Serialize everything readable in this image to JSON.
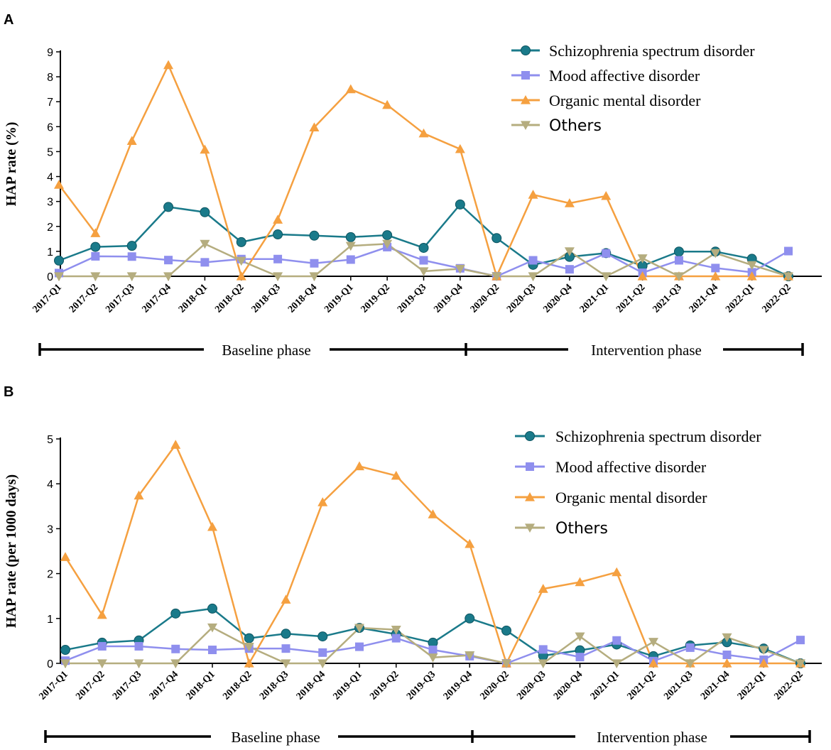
{
  "chart_data": [
    {
      "panel": "A",
      "type": "line",
      "ylabel": "HAP rate (%)",
      "ylim": [
        0,
        9
      ],
      "yticks": [
        "0",
        "1",
        "2",
        "3",
        "4",
        "5",
        "6",
        "7",
        "8",
        "9"
      ],
      "categories": [
        "2017-Q1",
        "2017-Q2",
        "2017-Q3",
        "2017-Q4",
        "2018-Q1",
        "2018-Q2",
        "2018-Q3",
        "2018-Q4",
        "2019-Q1",
        "2019-Q2",
        "2019-Q3",
        "2019-Q4",
        "2020-Q2",
        "2020-Q3",
        "2020-Q4",
        "2021-Q1",
        "2021-Q2",
        "2021-Q3",
        "2021-Q4",
        "2022-Q1",
        "2022-Q2"
      ],
      "series": [
        {
          "name": "Schizophrenia spectrum disorder",
          "color": "#1a7a8a",
          "marker": "circle",
          "values": [
            0.63,
            1.18,
            1.22,
            2.78,
            2.57,
            1.37,
            1.68,
            1.63,
            1.57,
            1.65,
            1.14,
            2.88,
            1.53,
            0.46,
            0.78,
            0.93,
            0.42,
            0.99,
            0.99,
            0.7,
            0.0
          ]
        },
        {
          "name": "Mood affective disorder",
          "color": "#8f8fee",
          "marker": "square",
          "values": [
            0.13,
            0.8,
            0.79,
            0.65,
            0.56,
            0.69,
            0.69,
            0.52,
            0.67,
            1.17,
            0.64,
            0.32,
            0.0,
            0.64,
            0.28,
            0.92,
            0.14,
            0.64,
            0.33,
            0.16,
            1.01
          ]
        },
        {
          "name": "Organic mental disorder",
          "color": "#f5a040",
          "marker": "triangle-up",
          "values": [
            3.67,
            1.73,
            5.43,
            8.47,
            5.08,
            0.0,
            2.27,
            5.97,
            7.5,
            6.87,
            5.73,
            5.1,
            0.0,
            3.27,
            2.93,
            3.22,
            0.0,
            0.0,
            0.0,
            0.0,
            0.0
          ]
        },
        {
          "name": "Others",
          "color": "#b5ad7f",
          "marker": "triangle-down",
          "values": [
            0.0,
            0.0,
            0.0,
            0.0,
            1.3,
            0.62,
            0.0,
            0.0,
            1.22,
            1.3,
            0.2,
            0.3,
            0.0,
            0.0,
            1.0,
            0.0,
            0.72,
            0.0,
            0.93,
            0.45,
            0.0
          ]
        }
      ],
      "phases": [
        {
          "label": "Baseline phase",
          "from": "2017-Q1",
          "to": "2019-Q4"
        },
        {
          "label": "Intervention phase",
          "from": "2019-Q4",
          "to": "2022-Q2"
        }
      ]
    },
    {
      "panel": "B",
      "type": "line",
      "ylabel": "HAP rate (per 1000 days)",
      "ylim": [
        0,
        5
      ],
      "yticks": [
        "0",
        "1",
        "2",
        "3",
        "4",
        "5"
      ],
      "categories": [
        "2017-Q1",
        "2017-Q2",
        "2017-Q3",
        "2017-Q4",
        "2018-Q1",
        "2018-Q2",
        "2018-Q3",
        "2018-Q4",
        "2019-Q1",
        "2019-Q2",
        "2019-Q3",
        "2019-Q4",
        "2020-Q2",
        "2020-Q3",
        "2020-Q4",
        "2021-Q1",
        "2021-Q2",
        "2021-Q3",
        "2021-Q4",
        "2022-Q1",
        "2022-Q2"
      ],
      "series": [
        {
          "name": "Schizophrenia spectrum disorder",
          "color": "#1a7a8a",
          "marker": "circle",
          "values": [
            0.3,
            0.46,
            0.51,
            1.11,
            1.22,
            0.56,
            0.66,
            0.6,
            0.79,
            0.65,
            0.46,
            1.0,
            0.73,
            0.17,
            0.29,
            0.42,
            0.16,
            0.4,
            0.47,
            0.33,
            0.0
          ]
        },
        {
          "name": "Mood affective disorder",
          "color": "#8f8fee",
          "marker": "square",
          "values": [
            0.06,
            0.38,
            0.38,
            0.32,
            0.3,
            0.33,
            0.33,
            0.24,
            0.37,
            0.56,
            0.3,
            0.16,
            0.0,
            0.31,
            0.14,
            0.51,
            0.05,
            0.35,
            0.19,
            0.08,
            0.52
          ]
        },
        {
          "name": "Organic mental disorder",
          "color": "#f5a040",
          "marker": "triangle-up",
          "values": [
            2.37,
            1.08,
            3.74,
            4.87,
            3.04,
            0.0,
            1.42,
            3.59,
            4.39,
            4.18,
            3.32,
            2.66,
            0.0,
            1.66,
            1.81,
            2.03,
            0.0,
            0.0,
            0.0,
            0.0,
            0.0
          ]
        },
        {
          "name": "Others",
          "color": "#b5ad7f",
          "marker": "triangle-down",
          "values": [
            0.0,
            0.0,
            0.0,
            0.0,
            0.8,
            0.37,
            0.0,
            0.0,
            0.79,
            0.75,
            0.13,
            0.18,
            0.0,
            0.0,
            0.6,
            0.0,
            0.48,
            0.0,
            0.58,
            0.3,
            0.0
          ]
        }
      ],
      "phases": [
        {
          "label": "Baseline phase",
          "from": "2017-Q1",
          "to": "2019-Q4"
        },
        {
          "label": "Intervention phase",
          "from": "2019-Q4",
          "to": "2022-Q2"
        }
      ]
    }
  ]
}
